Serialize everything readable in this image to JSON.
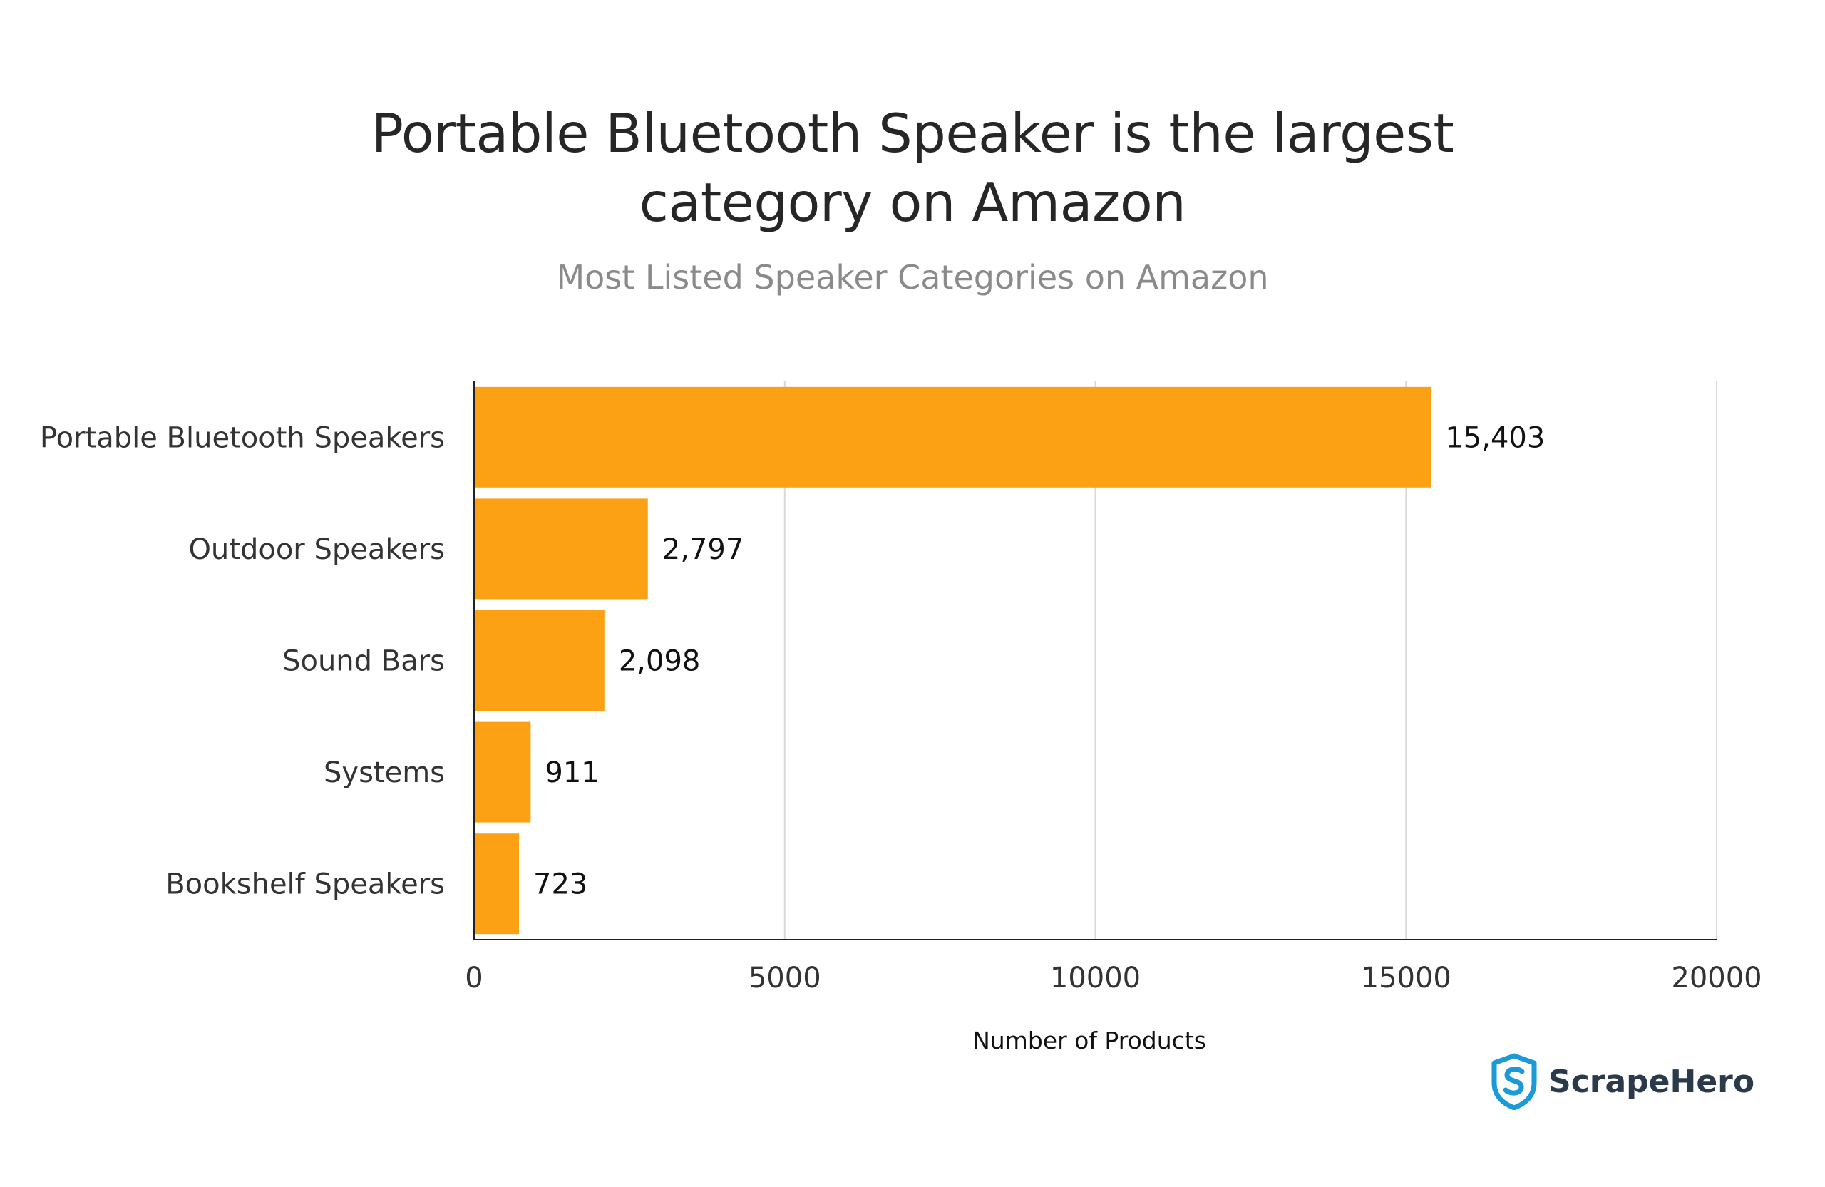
{
  "chart_data": {
    "type": "bar",
    "orientation": "horizontal",
    "title_lines": [
      "Portable Bluetooth Speaker is the largest",
      "category on Amazon"
    ],
    "subtitle": "Most Listed Speaker Categories on Amazon",
    "categories": [
      "Portable Bluetooth Speakers",
      "Outdoor Speakers",
      "Sound Bars",
      "Systems",
      "Bookshelf Speakers"
    ],
    "values": [
      15403,
      2797,
      2098,
      911,
      723
    ],
    "value_labels": [
      "15,403",
      "2,797",
      "2,098",
      "911",
      "723"
    ],
    "xlabel": "Number of Products",
    "ylabel": "",
    "xlim": [
      0,
      20000
    ],
    "x_ticks": [
      0,
      5000,
      10000,
      15000,
      20000
    ],
    "x_tick_labels": [
      "0",
      "5000",
      "10000",
      "15000",
      "20000"
    ],
    "grid": "vertical",
    "legend": "none",
    "colors": {
      "bar": "#FCA014",
      "grid": "#d9d9d9",
      "axis": "#222222"
    }
  },
  "brand": {
    "name": "ScrapeHero",
    "logo_icon": "shield-s-logo",
    "logo_color": "#1a9ad6"
  }
}
